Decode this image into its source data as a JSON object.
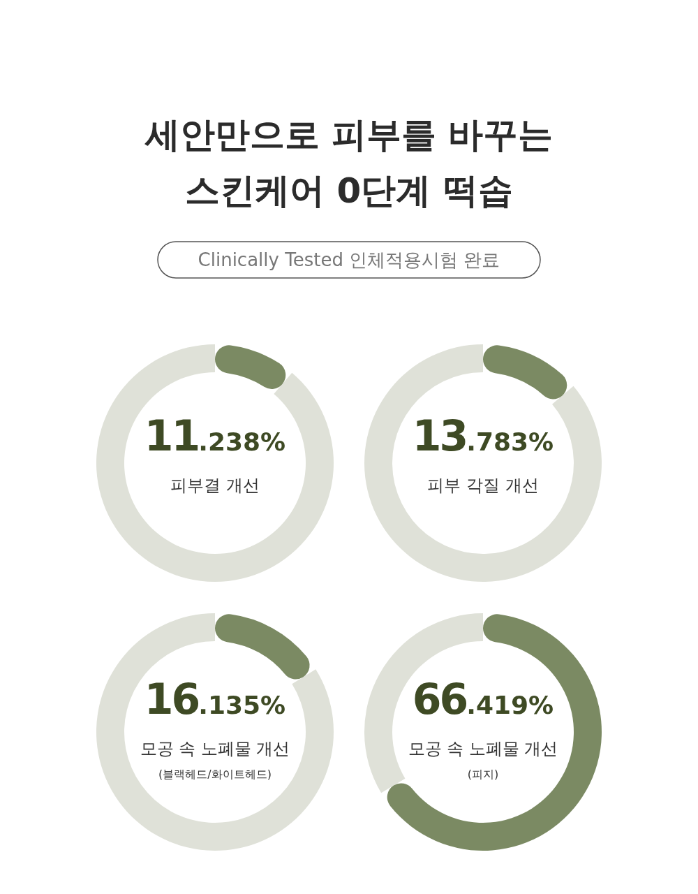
{
  "chart_data": [
    {
      "type": "donut",
      "title": "세안만으로 피부를 바꾸는\n스킨케어 0단계 떡솝",
      "subtitle": "Clinically Tested 인체적용시험 완료",
      "categories": [
        null,
        null
      ],
      "values": [
        11.238,
        88.762
      ],
      "colors": [
        "#7b8a63",
        "#dfe1d8"
      ],
      "value_labels": [
        "11.238%",
        null
      ],
      "annotations": [
        "피부결 개선"
      ]
    },
    {
      "type": "donut",
      "categories": [
        null,
        null
      ],
      "values": [
        13.783,
        86.217
      ],
      "colors": [
        "#7b8a63",
        "#dfe1d8"
      ],
      "value_labels": [
        "13.783%",
        null
      ],
      "annotations": [
        "피부 각질 개선"
      ]
    },
    {
      "type": "donut",
      "categories": [
        null,
        null
      ],
      "values": [
        16.135,
        83.865
      ],
      "colors": [
        "#7b8a63",
        "#dfe1d8"
      ],
      "value_labels": [
        "16.135%",
        null
      ],
      "annotations": [
        "모공 속 노폐물 개선",
        "(블랙헤드/화이트헤드)"
      ]
    },
    {
      "type": "donut",
      "categories": [
        null,
        null
      ],
      "values": [
        66.419,
        33.581
      ],
      "colors": [
        "#7b8a63",
        "#dfe1d8"
      ],
      "value_labels": [
        "66.419%",
        null
      ],
      "annotations": [
        "모공 속 노폐물 개선",
        "(피지)"
      ]
    }
  ]
}
